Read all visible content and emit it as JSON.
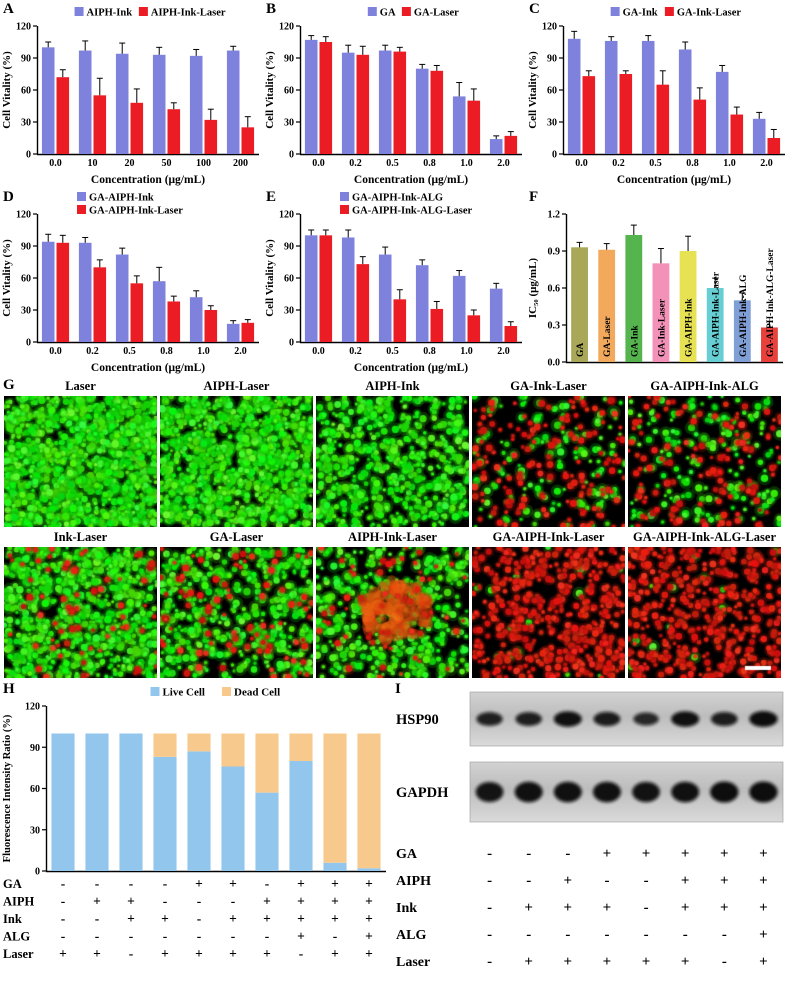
{
  "panel_letters": {
    "A": "A",
    "B": "B",
    "C": "C",
    "D": "D",
    "E": "E",
    "F": "F",
    "G": "G",
    "H": "H",
    "I": "I"
  },
  "chart_data": [
    {
      "id": "A",
      "type": "grouped-bar",
      "legend": "row",
      "xlabel": "Concentration (μg/mL)",
      "ylabel": "Cell Vitality (%)",
      "ylim": [
        0,
        120
      ],
      "yticks": [
        0,
        30,
        60,
        90,
        120
      ],
      "categories": [
        "0.0",
        "10",
        "20",
        "50",
        "100",
        "200"
      ],
      "series": [
        {
          "name": "AIPH-Ink",
          "color": "#7f82dd",
          "values": [
            100,
            97,
            94,
            93,
            92,
            97
          ],
          "errors": [
            5,
            9,
            10,
            7,
            6,
            4
          ]
        },
        {
          "name": "AIPH-Ink-Laser",
          "color": "#ec1c24",
          "values": [
            72,
            55,
            48,
            42,
            32,
            25
          ],
          "errors": [
            7,
            16,
            13,
            6,
            10,
            10
          ]
        }
      ]
    },
    {
      "id": "B",
      "type": "grouped-bar",
      "legend": "row",
      "xlabel": "Concentration (μg/mL)",
      "ylabel": "Cell Vitality (%)",
      "ylim": [
        0,
        120
      ],
      "yticks": [
        0,
        30,
        60,
        90,
        120
      ],
      "categories": [
        "0.0",
        "0.2",
        "0.5",
        "0.8",
        "1.0",
        "2.0"
      ],
      "series": [
        {
          "name": "GA",
          "color": "#7f82dd",
          "values": [
            107,
            95,
            97,
            80,
            54,
            14
          ],
          "errors": [
            4,
            7,
            5,
            4,
            13,
            3
          ]
        },
        {
          "name": "GA-Laser",
          "color": "#ec1c24",
          "values": [
            105,
            93,
            96,
            78,
            50,
            17
          ],
          "errors": [
            5,
            8,
            4,
            5,
            11,
            4
          ]
        }
      ]
    },
    {
      "id": "C",
      "type": "grouped-bar",
      "legend": "row",
      "xlabel": "Concentration (μg/mL)",
      "ylabel": "Cell Vitality (%)",
      "ylim": [
        0,
        120
      ],
      "yticks": [
        0,
        30,
        60,
        90,
        120
      ],
      "categories": [
        "0.0",
        "0.2",
        "0.5",
        "0.8",
        "1.0",
        "2.0"
      ],
      "series": [
        {
          "name": "GA-Ink",
          "color": "#7f82dd",
          "values": [
            108,
            106,
            106,
            98,
            77,
            33
          ],
          "errors": [
            7,
            4,
            5,
            7,
            6,
            6
          ]
        },
        {
          "name": "GA-Ink-Laser",
          "color": "#ec1c24",
          "values": [
            73,
            75,
            65,
            51,
            37,
            15
          ],
          "errors": [
            5,
            3,
            13,
            11,
            7,
            8
          ]
        }
      ]
    },
    {
      "id": "D",
      "type": "grouped-bar",
      "legend": "stacked",
      "xlabel": "Concentration (μg/mL)",
      "ylabel": "Cell Vitality (%)",
      "ylim": [
        0,
        120
      ],
      "yticks": [
        0,
        30,
        60,
        90,
        120
      ],
      "categories": [
        "0.0",
        "0.2",
        "0.5",
        "0.8",
        "1.0",
        "2.0"
      ],
      "series": [
        {
          "name": "GA-AIPH-Ink",
          "color": "#7f82dd",
          "values": [
            94,
            93,
            82,
            57,
            42,
            17
          ],
          "errors": [
            7,
            5,
            6,
            13,
            6,
            3
          ]
        },
        {
          "name": "GA-AIPH-Ink-Laser",
          "color": "#ec1c24",
          "values": [
            93,
            70,
            55,
            38,
            30,
            18
          ],
          "errors": [
            7,
            7,
            7,
            5,
            4,
            3
          ]
        }
      ]
    },
    {
      "id": "E",
      "type": "grouped-bar",
      "legend": "stacked",
      "xlabel": "Concentration (μg/mL)",
      "ylabel": "Cell Vitality (%)",
      "ylim": [
        0,
        120
      ],
      "yticks": [
        0,
        30,
        60,
        90,
        120
      ],
      "categories": [
        "0.0",
        "0.2",
        "0.5",
        "0.8",
        "1.0",
        "2.0"
      ],
      "series": [
        {
          "name": "GA-AIPH-Ink-ALG",
          "color": "#7f82dd",
          "values": [
            100,
            98,
            82,
            72,
            62,
            50
          ],
          "errors": [
            5,
            7,
            7,
            5,
            5,
            5
          ]
        },
        {
          "name": "GA-AIPH-Ink-ALG-Laser",
          "color": "#ec1c24",
          "values": [
            100,
            73,
            40,
            31,
            25,
            15
          ],
          "errors": [
            5,
            7,
            9,
            7,
            5,
            4
          ]
        }
      ]
    },
    {
      "id": "F",
      "type": "bar",
      "xlabel": "",
      "ylabel": "IC₅₀ (μg/mL)",
      "ylim": [
        0,
        1.2
      ],
      "yticks": [
        0,
        0.3,
        0.6,
        0.9,
        1.2
      ],
      "categories": [
        "GA",
        "GA-Laser",
        "GA-Ink",
        "GA-Ink-Laser",
        "GA-AIPH-Ink",
        "GA-AIPH-Ink-Laser",
        "GA-AIPH-Ink-ALG",
        "GA-AIPH-Ink-ALG-Laser"
      ],
      "values": [
        0.93,
        0.91,
        1.03,
        0.8,
        0.9,
        0.6,
        0.5,
        0.28
      ],
      "errors": [
        0.04,
        0.05,
        0.08,
        0.12,
        0.12,
        0.08,
        0.06,
        0.05
      ],
      "colors": [
        "#a8a858",
        "#f2a95c",
        "#55b44e",
        "#f391b8",
        "#e6e253",
        "#67cfd4",
        "#7f9fd6",
        "#e8413c"
      ]
    },
    {
      "id": "H",
      "type": "stacked-bar",
      "legend": "row",
      "xlabel": "",
      "ylabel": "Fluorescence Intensity Ratio (%)",
      "ylim": [
        0,
        120
      ],
      "yticks": [
        0,
        30,
        60,
        90,
        120
      ],
      "series": [
        {
          "name": "Live Cell",
          "color": "#93c6ed",
          "values": [
            100,
            100,
            100,
            83,
            87,
            76,
            57,
            80,
            6,
            2
          ]
        },
        {
          "name": "Dead Cell",
          "color": "#f8c98c",
          "values": [
            0,
            0,
            0,
            17,
            13,
            24,
            43,
            20,
            94,
            98
          ]
        }
      ],
      "matrix": {
        "rows": [
          {
            "label": "GA",
            "values": [
              "-",
              "-",
              "-",
              "-",
              "+",
              "+",
              "-",
              "+",
              "+",
              "+"
            ]
          },
          {
            "label": "AIPH",
            "values": [
              "-",
              "+",
              "+",
              "-",
              "-",
              "-",
              "+",
              "+",
              "+",
              "+"
            ]
          },
          {
            "label": "Ink",
            "values": [
              "-",
              "-",
              "+",
              "+",
              "-",
              "+",
              "+",
              "+",
              "+",
              "+"
            ]
          },
          {
            "label": "ALG",
            "values": [
              "-",
              "-",
              "-",
              "-",
              "-",
              "-",
              "-",
              "+",
              "-",
              "+"
            ]
          },
          {
            "label": "Laser",
            "values": [
              "+",
              "+",
              "-",
              "+",
              "+",
              "+",
              "+",
              "-",
              "+",
              "+"
            ]
          }
        ]
      }
    }
  ],
  "panel_g": {
    "rows": [
      [
        {
          "label": "Laser",
          "green": 1200,
          "red": 0
        },
        {
          "label": "AIPH-Laser",
          "green": 1050,
          "red": 0
        },
        {
          "label": "AIPH-Ink",
          "green": 600,
          "red": 0
        },
        {
          "label": "GA-Ink-Laser",
          "green": 140,
          "red": 160
        },
        {
          "label": "GA-AIPH-Ink-ALG",
          "green": 180,
          "red": 140
        }
      ],
      [
        {
          "label": "Ink-Laser",
          "green": 800,
          "red": 70
        },
        {
          "label": "GA-Laser",
          "green": 500,
          "red": 90
        },
        {
          "label": "AIPH-Ink-Laser",
          "green": 450,
          "red": 60,
          "blob": true
        },
        {
          "label": "GA-AIPH-Ink-Laser",
          "green": 20,
          "red": 500
        },
        {
          "label": "GA-AIPH-Ink-ALG-Laser",
          "green": 14,
          "red": 460,
          "scalebar": true
        }
      ]
    ]
  },
  "panel_i": {
    "blots": [
      {
        "name": "HSP90",
        "bands": [
          0.72,
          0.75,
          0.95,
          0.8,
          0.62,
          0.95,
          0.78,
          1.0
        ]
      },
      {
        "name": "GAPDH",
        "bands": [
          0.9,
          0.95,
          0.95,
          0.95,
          0.92,
          0.95,
          1.0,
          1.0
        ]
      }
    ],
    "matrix": {
      "rows": [
        {
          "label": "GA",
          "values": [
            "-",
            "-",
            "-",
            "+",
            "+",
            "+",
            "+",
            "+"
          ]
        },
        {
          "label": "AIPH",
          "values": [
            "-",
            "-",
            "+",
            "-",
            "-",
            "+",
            "+",
            "+"
          ]
        },
        {
          "label": "Ink",
          "values": [
            "-",
            "+",
            "+",
            "+",
            "-",
            "+",
            "+",
            "+"
          ]
        },
        {
          "label": "ALG",
          "values": [
            "-",
            "-",
            "-",
            "-",
            "-",
            "-",
            "-",
            "+"
          ]
        },
        {
          "label": "Laser",
          "values": [
            "-",
            "+",
            "+",
            "+",
            "+",
            "+",
            "-",
            "+"
          ]
        }
      ]
    }
  }
}
